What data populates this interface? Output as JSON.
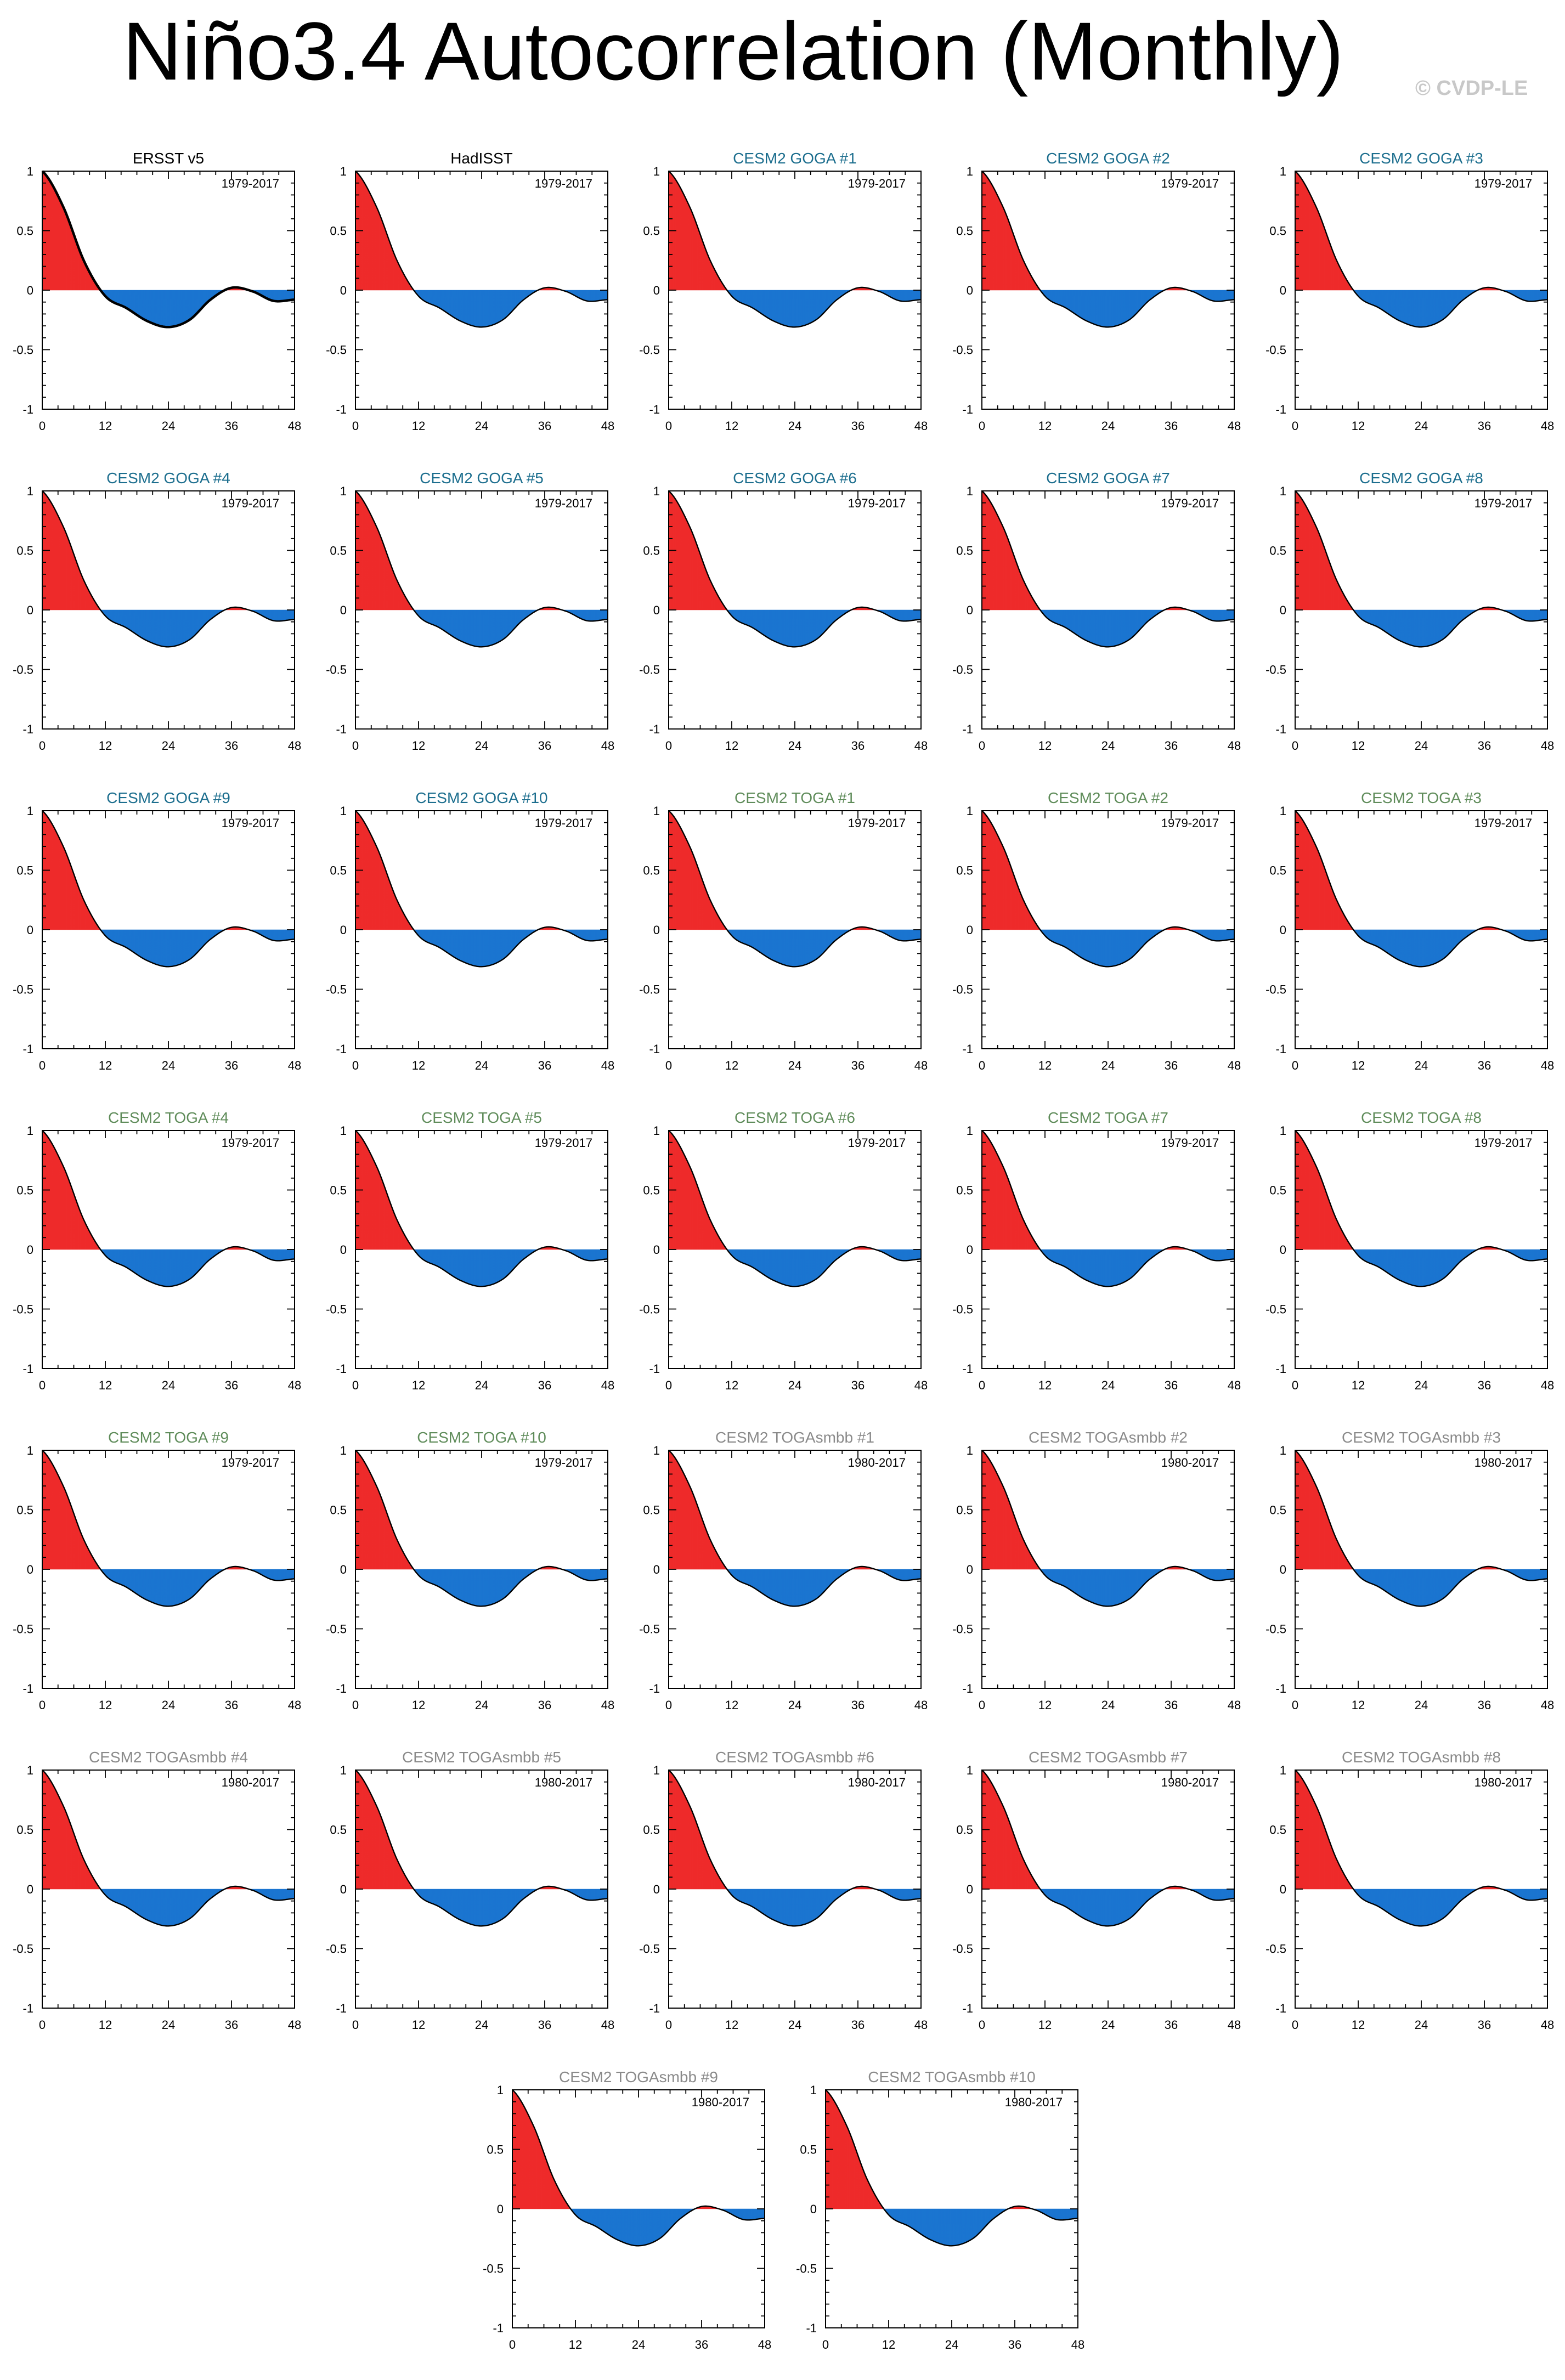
{
  "title": "Niño3.4 Autocorrelation (Monthly)",
  "credit": "© CVDP-LE",
  "colors": {
    "positive_fill": "#ee2b2b",
    "negative_fill": "#1b75d0",
    "line": "#000000",
    "title_obs": "#000000",
    "title_goga": "#1c6e8e",
    "title_toga": "#5f8c5a",
    "title_togasmbb": "#8a8a8a",
    "period_label": "#000000"
  },
  "axes": {
    "x_ticks": [
      "0",
      "12",
      "24",
      "36",
      "48"
    ],
    "y_ticks": [
      "1",
      "0.5",
      "0",
      "-0.5",
      "-1"
    ],
    "xlim": [
      0,
      48
    ],
    "ylim": [
      -1,
      1
    ]
  },
  "chart_data": [
    {
      "type": "area",
      "title": "ERSST v5",
      "group": "obs",
      "period": "1979-2017",
      "x": [
        0,
        4,
        8,
        12,
        16,
        20,
        24,
        28,
        32,
        36,
        40,
        44,
        48
      ],
      "y": [
        1.0,
        0.7,
        0.24,
        -0.05,
        -0.15,
        -0.26,
        -0.31,
        -0.25,
        -0.08,
        0.02,
        -0.01,
        -0.09,
        -0.08
      ]
    },
    {
      "type": "area",
      "title": "HadISST",
      "group": "obs",
      "period": "1979-2017",
      "x": [
        0,
        4,
        8,
        12,
        16,
        20,
        24,
        28,
        32,
        36,
        40,
        44,
        48
      ],
      "y": [
        1.0,
        0.7,
        0.24,
        -0.05,
        -0.15,
        -0.26,
        -0.31,
        -0.25,
        -0.08,
        0.02,
        -0.01,
        -0.09,
        -0.08
      ]
    },
    {
      "type": "area",
      "title": "CESM2 GOGA #1",
      "group": "goga",
      "period": "1979-2017",
      "x": [
        0,
        4,
        8,
        12,
        16,
        20,
        24,
        28,
        32,
        36,
        40,
        44,
        48
      ],
      "y": [
        1.0,
        0.7,
        0.24,
        -0.05,
        -0.15,
        -0.26,
        -0.31,
        -0.25,
        -0.08,
        0.02,
        -0.01,
        -0.09,
        -0.08
      ]
    },
    {
      "type": "area",
      "title": "CESM2 GOGA #2",
      "group": "goga",
      "period": "1979-2017",
      "x": [
        0,
        4,
        8,
        12,
        16,
        20,
        24,
        28,
        32,
        36,
        40,
        44,
        48
      ],
      "y": [
        1.0,
        0.7,
        0.24,
        -0.05,
        -0.15,
        -0.26,
        -0.31,
        -0.25,
        -0.08,
        0.02,
        -0.01,
        -0.09,
        -0.08
      ]
    },
    {
      "type": "area",
      "title": "CESM2 GOGA #3",
      "group": "goga",
      "period": "1979-2017",
      "x": [
        0,
        4,
        8,
        12,
        16,
        20,
        24,
        28,
        32,
        36,
        40,
        44,
        48
      ],
      "y": [
        1.0,
        0.7,
        0.24,
        -0.05,
        -0.15,
        -0.26,
        -0.31,
        -0.25,
        -0.08,
        0.02,
        -0.01,
        -0.09,
        -0.08
      ]
    },
    {
      "type": "area",
      "title": "CESM2 GOGA #4",
      "group": "goga",
      "period": "1979-2017",
      "x": [
        0,
        4,
        8,
        12,
        16,
        20,
        24,
        28,
        32,
        36,
        40,
        44,
        48
      ],
      "y": [
        1.0,
        0.7,
        0.24,
        -0.05,
        -0.15,
        -0.26,
        -0.31,
        -0.25,
        -0.08,
        0.02,
        -0.01,
        -0.09,
        -0.08
      ]
    },
    {
      "type": "area",
      "title": "CESM2 GOGA #5",
      "group": "goga",
      "period": "1979-2017",
      "x": [
        0,
        4,
        8,
        12,
        16,
        20,
        24,
        28,
        32,
        36,
        40,
        44,
        48
      ],
      "y": [
        1.0,
        0.7,
        0.24,
        -0.05,
        -0.15,
        -0.26,
        -0.31,
        -0.25,
        -0.08,
        0.02,
        -0.01,
        -0.09,
        -0.08
      ]
    },
    {
      "type": "area",
      "title": "CESM2 GOGA #6",
      "group": "goga",
      "period": "1979-2017",
      "x": [
        0,
        4,
        8,
        12,
        16,
        20,
        24,
        28,
        32,
        36,
        40,
        44,
        48
      ],
      "y": [
        1.0,
        0.7,
        0.24,
        -0.05,
        -0.15,
        -0.26,
        -0.31,
        -0.25,
        -0.08,
        0.02,
        -0.01,
        -0.09,
        -0.08
      ]
    },
    {
      "type": "area",
      "title": "CESM2 GOGA #7",
      "group": "goga",
      "period": "1979-2017",
      "x": [
        0,
        4,
        8,
        12,
        16,
        20,
        24,
        28,
        32,
        36,
        40,
        44,
        48
      ],
      "y": [
        1.0,
        0.7,
        0.24,
        -0.05,
        -0.15,
        -0.26,
        -0.31,
        -0.25,
        -0.08,
        0.02,
        -0.01,
        -0.09,
        -0.08
      ]
    },
    {
      "type": "area",
      "title": "CESM2 GOGA #8",
      "group": "goga",
      "period": "1979-2017",
      "x": [
        0,
        4,
        8,
        12,
        16,
        20,
        24,
        28,
        32,
        36,
        40,
        44,
        48
      ],
      "y": [
        1.0,
        0.7,
        0.24,
        -0.05,
        -0.15,
        -0.26,
        -0.31,
        -0.25,
        -0.08,
        0.02,
        -0.01,
        -0.09,
        -0.08
      ]
    },
    {
      "type": "area",
      "title": "CESM2 GOGA #9",
      "group": "goga",
      "period": "1979-2017",
      "x": [
        0,
        4,
        8,
        12,
        16,
        20,
        24,
        28,
        32,
        36,
        40,
        44,
        48
      ],
      "y": [
        1.0,
        0.7,
        0.24,
        -0.05,
        -0.15,
        -0.26,
        -0.31,
        -0.25,
        -0.08,
        0.02,
        -0.01,
        -0.09,
        -0.08
      ]
    },
    {
      "type": "area",
      "title": "CESM2 GOGA #10",
      "group": "goga",
      "period": "1979-2017",
      "x": [
        0,
        4,
        8,
        12,
        16,
        20,
        24,
        28,
        32,
        36,
        40,
        44,
        48
      ],
      "y": [
        1.0,
        0.7,
        0.24,
        -0.05,
        -0.15,
        -0.26,
        -0.31,
        -0.25,
        -0.08,
        0.02,
        -0.01,
        -0.09,
        -0.08
      ]
    },
    {
      "type": "area",
      "title": "CESM2 TOGA #1",
      "group": "toga",
      "period": "1979-2017",
      "x": [
        0,
        4,
        8,
        12,
        16,
        20,
        24,
        28,
        32,
        36,
        40,
        44,
        48
      ],
      "y": [
        1.0,
        0.7,
        0.24,
        -0.05,
        -0.15,
        -0.26,
        -0.31,
        -0.25,
        -0.08,
        0.02,
        -0.01,
        -0.09,
        -0.08
      ]
    },
    {
      "type": "area",
      "title": "CESM2 TOGA #2",
      "group": "toga",
      "period": "1979-2017",
      "x": [
        0,
        4,
        8,
        12,
        16,
        20,
        24,
        28,
        32,
        36,
        40,
        44,
        48
      ],
      "y": [
        1.0,
        0.7,
        0.24,
        -0.05,
        -0.15,
        -0.26,
        -0.31,
        -0.25,
        -0.08,
        0.02,
        -0.01,
        -0.09,
        -0.08
      ]
    },
    {
      "type": "area",
      "title": "CESM2 TOGA #3",
      "group": "toga",
      "period": "1979-2017",
      "x": [
        0,
        4,
        8,
        12,
        16,
        20,
        24,
        28,
        32,
        36,
        40,
        44,
        48
      ],
      "y": [
        1.0,
        0.7,
        0.24,
        -0.05,
        -0.15,
        -0.26,
        -0.31,
        -0.25,
        -0.08,
        0.02,
        -0.01,
        -0.09,
        -0.08
      ]
    },
    {
      "type": "area",
      "title": "CESM2 TOGA #4",
      "group": "toga",
      "period": "1979-2017",
      "x": [
        0,
        4,
        8,
        12,
        16,
        20,
        24,
        28,
        32,
        36,
        40,
        44,
        48
      ],
      "y": [
        1.0,
        0.7,
        0.24,
        -0.05,
        -0.15,
        -0.26,
        -0.31,
        -0.25,
        -0.08,
        0.02,
        -0.01,
        -0.09,
        -0.08
      ]
    },
    {
      "type": "area",
      "title": "CESM2 TOGA #5",
      "group": "toga",
      "period": "1979-2017",
      "x": [
        0,
        4,
        8,
        12,
        16,
        20,
        24,
        28,
        32,
        36,
        40,
        44,
        48
      ],
      "y": [
        1.0,
        0.7,
        0.24,
        -0.05,
        -0.15,
        -0.26,
        -0.31,
        -0.25,
        -0.08,
        0.02,
        -0.01,
        -0.09,
        -0.08
      ]
    },
    {
      "type": "area",
      "title": "CESM2 TOGA #6",
      "group": "toga",
      "period": "1979-2017",
      "x": [
        0,
        4,
        8,
        12,
        16,
        20,
        24,
        28,
        32,
        36,
        40,
        44,
        48
      ],
      "y": [
        1.0,
        0.7,
        0.24,
        -0.05,
        -0.15,
        -0.26,
        -0.31,
        -0.25,
        -0.08,
        0.02,
        -0.01,
        -0.09,
        -0.08
      ]
    },
    {
      "type": "area",
      "title": "CESM2 TOGA #7",
      "group": "toga",
      "period": "1979-2017",
      "x": [
        0,
        4,
        8,
        12,
        16,
        20,
        24,
        28,
        32,
        36,
        40,
        44,
        48
      ],
      "y": [
        1.0,
        0.7,
        0.24,
        -0.05,
        -0.15,
        -0.26,
        -0.31,
        -0.25,
        -0.08,
        0.02,
        -0.01,
        -0.09,
        -0.08
      ]
    },
    {
      "type": "area",
      "title": "CESM2 TOGA #8",
      "group": "toga",
      "period": "1979-2017",
      "x": [
        0,
        4,
        8,
        12,
        16,
        20,
        24,
        28,
        32,
        36,
        40,
        44,
        48
      ],
      "y": [
        1.0,
        0.7,
        0.24,
        -0.05,
        -0.15,
        -0.26,
        -0.31,
        -0.25,
        -0.08,
        0.02,
        -0.01,
        -0.09,
        -0.08
      ]
    },
    {
      "type": "area",
      "title": "CESM2 TOGA #9",
      "group": "toga",
      "period": "1979-2017",
      "x": [
        0,
        4,
        8,
        12,
        16,
        20,
        24,
        28,
        32,
        36,
        40,
        44,
        48
      ],
      "y": [
        1.0,
        0.7,
        0.24,
        -0.05,
        -0.15,
        -0.26,
        -0.31,
        -0.25,
        -0.08,
        0.02,
        -0.01,
        -0.09,
        -0.08
      ]
    },
    {
      "type": "area",
      "title": "CESM2 TOGA #10",
      "group": "toga",
      "period": "1979-2017",
      "x": [
        0,
        4,
        8,
        12,
        16,
        20,
        24,
        28,
        32,
        36,
        40,
        44,
        48
      ],
      "y": [
        1.0,
        0.7,
        0.24,
        -0.05,
        -0.15,
        -0.26,
        -0.31,
        -0.25,
        -0.08,
        0.02,
        -0.01,
        -0.09,
        -0.08
      ]
    },
    {
      "type": "area",
      "title": "CESM2 TOGAsmbb #1",
      "group": "togasmbb",
      "period": "1980-2017",
      "x": [
        0,
        4,
        8,
        12,
        16,
        20,
        24,
        28,
        32,
        36,
        40,
        44,
        48
      ],
      "y": [
        1.0,
        0.7,
        0.24,
        -0.05,
        -0.15,
        -0.26,
        -0.31,
        -0.25,
        -0.08,
        0.02,
        -0.01,
        -0.09,
        -0.08
      ]
    },
    {
      "type": "area",
      "title": "CESM2 TOGAsmbb #2",
      "group": "togasmbb",
      "period": "1980-2017",
      "x": [
        0,
        4,
        8,
        12,
        16,
        20,
        24,
        28,
        32,
        36,
        40,
        44,
        48
      ],
      "y": [
        1.0,
        0.7,
        0.24,
        -0.05,
        -0.15,
        -0.26,
        -0.31,
        -0.25,
        -0.08,
        0.02,
        -0.01,
        -0.09,
        -0.08
      ]
    },
    {
      "type": "area",
      "title": "CESM2 TOGAsmbb #3",
      "group": "togasmbb",
      "period": "1980-2017",
      "x": [
        0,
        4,
        8,
        12,
        16,
        20,
        24,
        28,
        32,
        36,
        40,
        44,
        48
      ],
      "y": [
        1.0,
        0.7,
        0.24,
        -0.05,
        -0.15,
        -0.26,
        -0.31,
        -0.25,
        -0.08,
        0.02,
        -0.01,
        -0.09,
        -0.08
      ]
    },
    {
      "type": "area",
      "title": "CESM2 TOGAsmbb #4",
      "group": "togasmbb",
      "period": "1980-2017",
      "x": [
        0,
        4,
        8,
        12,
        16,
        20,
        24,
        28,
        32,
        36,
        40,
        44,
        48
      ],
      "y": [
        1.0,
        0.7,
        0.24,
        -0.05,
        -0.15,
        -0.26,
        -0.31,
        -0.25,
        -0.08,
        0.02,
        -0.01,
        -0.09,
        -0.08
      ]
    },
    {
      "type": "area",
      "title": "CESM2 TOGAsmbb #5",
      "group": "togasmbb",
      "period": "1980-2017",
      "x": [
        0,
        4,
        8,
        12,
        16,
        20,
        24,
        28,
        32,
        36,
        40,
        44,
        48
      ],
      "y": [
        1.0,
        0.7,
        0.24,
        -0.05,
        -0.15,
        -0.26,
        -0.31,
        -0.25,
        -0.08,
        0.02,
        -0.01,
        -0.09,
        -0.08
      ]
    },
    {
      "type": "area",
      "title": "CESM2 TOGAsmbb #6",
      "group": "togasmbb",
      "period": "1980-2017",
      "x": [
        0,
        4,
        8,
        12,
        16,
        20,
        24,
        28,
        32,
        36,
        40,
        44,
        48
      ],
      "y": [
        1.0,
        0.7,
        0.24,
        -0.05,
        -0.15,
        -0.26,
        -0.31,
        -0.25,
        -0.08,
        0.02,
        -0.01,
        -0.09,
        -0.08
      ]
    },
    {
      "type": "area",
      "title": "CESM2 TOGAsmbb #7",
      "group": "togasmbb",
      "period": "1980-2017",
      "x": [
        0,
        4,
        8,
        12,
        16,
        20,
        24,
        28,
        32,
        36,
        40,
        44,
        48
      ],
      "y": [
        1.0,
        0.7,
        0.24,
        -0.05,
        -0.15,
        -0.26,
        -0.31,
        -0.25,
        -0.08,
        0.02,
        -0.01,
        -0.09,
        -0.08
      ]
    },
    {
      "type": "area",
      "title": "CESM2 TOGAsmbb #8",
      "group": "togasmbb",
      "period": "1980-2017",
      "x": [
        0,
        4,
        8,
        12,
        16,
        20,
        24,
        28,
        32,
        36,
        40,
        44,
        48
      ],
      "y": [
        1.0,
        0.7,
        0.24,
        -0.05,
        -0.15,
        -0.26,
        -0.31,
        -0.25,
        -0.08,
        0.02,
        -0.01,
        -0.09,
        -0.08
      ]
    },
    {
      "type": "area",
      "title": "CESM2 TOGAsmbb #9",
      "group": "togasmbb",
      "period": "1980-2017",
      "x": [
        0,
        4,
        8,
        12,
        16,
        20,
        24,
        28,
        32,
        36,
        40,
        44,
        48
      ],
      "y": [
        1.0,
        0.7,
        0.24,
        -0.05,
        -0.15,
        -0.26,
        -0.31,
        -0.25,
        -0.08,
        0.02,
        -0.01,
        -0.09,
        -0.08
      ]
    },
    {
      "type": "area",
      "title": "CESM2 TOGAsmbb #10",
      "group": "togasmbb",
      "period": "1980-2017",
      "x": [
        0,
        4,
        8,
        12,
        16,
        20,
        24,
        28,
        32,
        36,
        40,
        44,
        48
      ],
      "y": [
        1.0,
        0.7,
        0.24,
        -0.05,
        -0.15,
        -0.26,
        -0.31,
        -0.25,
        -0.08,
        0.02,
        -0.01,
        -0.09,
        -0.08
      ]
    }
  ]
}
